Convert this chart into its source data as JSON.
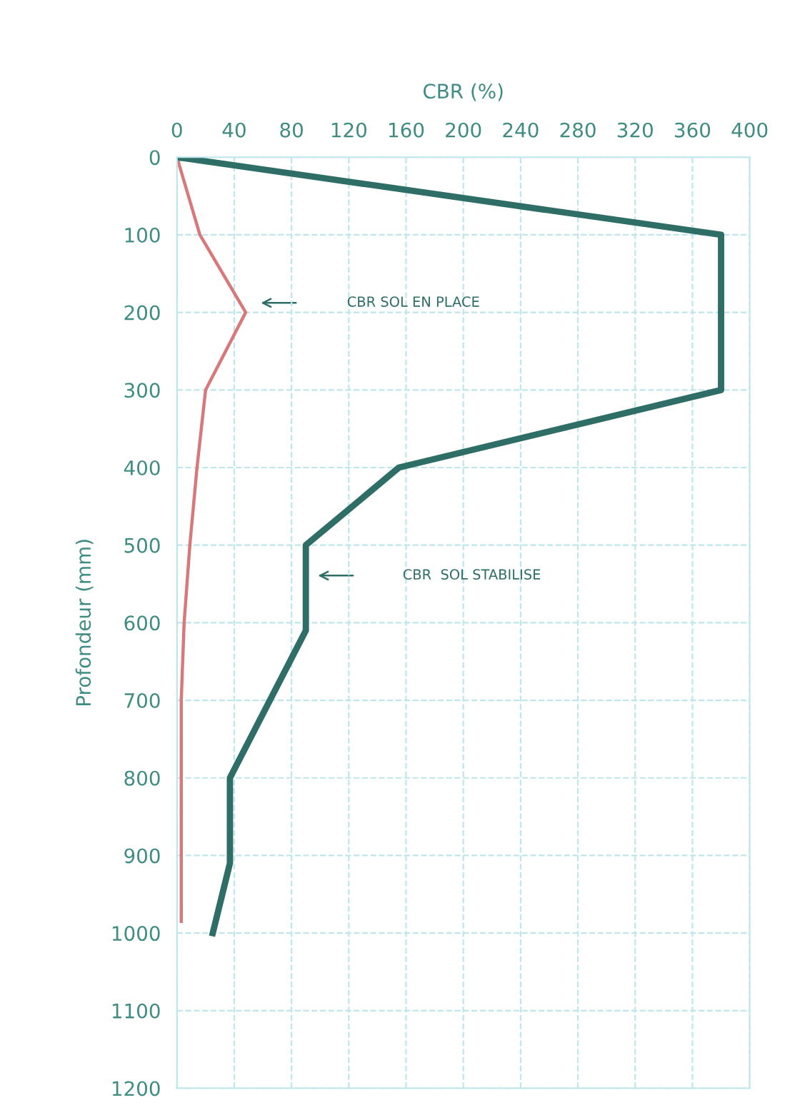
{
  "chart_data": {
    "type": "line",
    "xlabel": "CBR (%)",
    "ylabel": "Profondeur (mm)",
    "xlim": [
      0,
      400
    ],
    "xticks": [
      0,
      40,
      80,
      120,
      160,
      200,
      240,
      280,
      320,
      360,
      400
    ],
    "ylim": [
      1200,
      0
    ],
    "yticks": [
      0,
      100,
      200,
      300,
      400,
      500,
      600,
      700,
      800,
      900,
      1000,
      1100,
      1200
    ],
    "grid": true,
    "orientation": "horizontal",
    "series": [
      {
        "color": "#d9787a",
        "x": [
          0,
          100,
          200,
          300,
          400,
          500,
          600,
          700,
          800,
          985
        ],
        "values": [
          0,
          16,
          48,
          20,
          14,
          9,
          5,
          3,
          3,
          3
        ]
      },
      {
        "color": "#2e6e66",
        "x": [
          0,
          100,
          300,
          400,
          500,
          610,
          800,
          910,
          1000
        ],
        "values": [
          0,
          380,
          380,
          155,
          90,
          90,
          37,
          37,
          25
        ]
      }
    ],
    "annotations": [
      "CBR SOL EN PLACE",
      "CBR  SOL STABILISE"
    ]
  }
}
